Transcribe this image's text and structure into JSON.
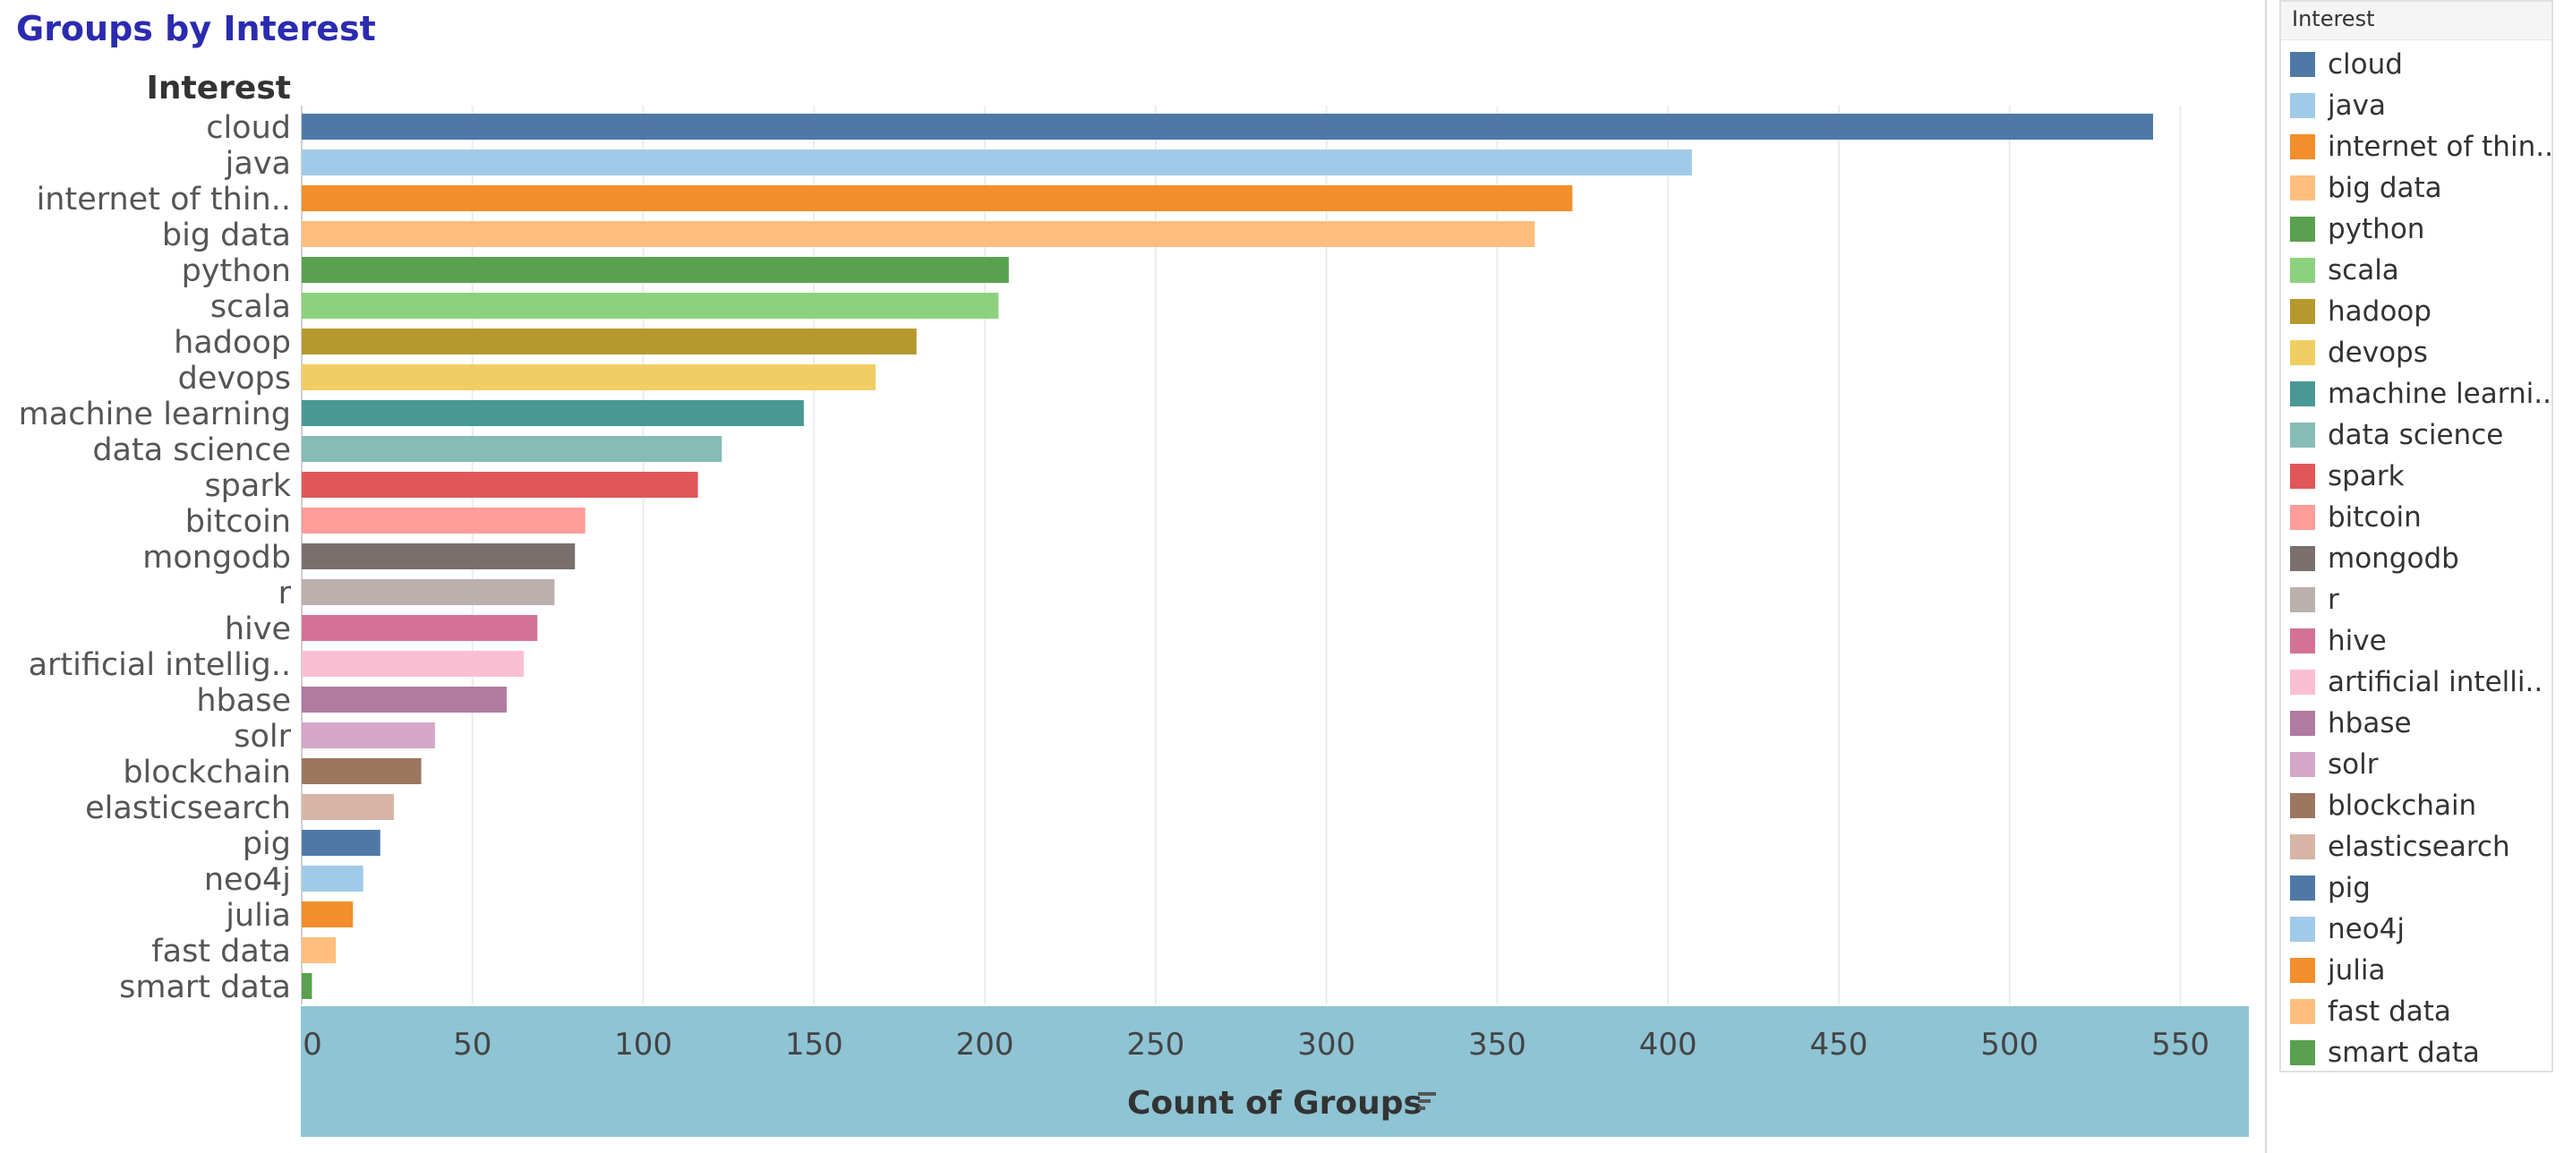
{
  "title": "Groups by Interest",
  "chart_data": {
    "type": "bar",
    "orientation": "horizontal",
    "title": "Groups by Interest",
    "ylabel": "Interest",
    "xlabel": "Count of Groups",
    "xlim": [
      0,
      570
    ],
    "xticks": [
      0,
      50,
      100,
      150,
      200,
      250,
      300,
      350,
      400,
      450,
      500,
      550
    ],
    "grid": true,
    "legend_position": "right",
    "categories": [
      "cloud",
      "java",
      "internet of thin..",
      "big data",
      "python",
      "scala",
      "hadoop",
      "devops",
      "machine learning",
      "data science",
      "spark",
      "bitcoin",
      "mongodb",
      "r",
      "hive",
      "artificial intellig..",
      "hbase",
      "solr",
      "blockchain",
      "elasticsearch",
      "pig",
      "neo4j",
      "julia",
      "fast data",
      "smart data"
    ],
    "values": [
      542,
      407,
      372,
      361,
      207,
      204,
      180,
      168,
      147,
      123,
      116,
      83,
      80,
      74,
      69,
      65,
      60,
      39,
      35,
      27,
      23,
      18,
      15,
      10,
      3
    ],
    "colors": [
      "#4e79a7",
      "#a0cbe8",
      "#f28e2b",
      "#ffbe7d",
      "#59a14f",
      "#8cd17d",
      "#b6992d",
      "#f1ce63",
      "#499894",
      "#86bcb6",
      "#e15759",
      "#ff9d9a",
      "#79706e",
      "#bab0ac",
      "#d37295",
      "#fabfd2",
      "#b07aa1",
      "#d4a6c8",
      "#9d7660",
      "#d7b5a6",
      "#4e79a7",
      "#a0cbe8",
      "#f28e2b",
      "#ffbe7d",
      "#59a14f"
    ]
  },
  "legend": {
    "title": "Interest",
    "items": [
      "cloud",
      "java",
      "internet of thin..",
      "big data",
      "python",
      "scala",
      "hadoop",
      "devops",
      "machine learni..",
      "data science",
      "spark",
      "bitcoin",
      "mongodb",
      "r",
      "hive",
      "artificial intelli..",
      "hbase",
      "solr",
      "blockchain",
      "elasticsearch",
      "pig",
      "neo4j",
      "julia",
      "fast data",
      "smart data"
    ]
  },
  "icons": {
    "sort": "sort-icon"
  },
  "colors": {
    "axis_band": "#8fc4d4",
    "title": "#2b2bb0"
  }
}
